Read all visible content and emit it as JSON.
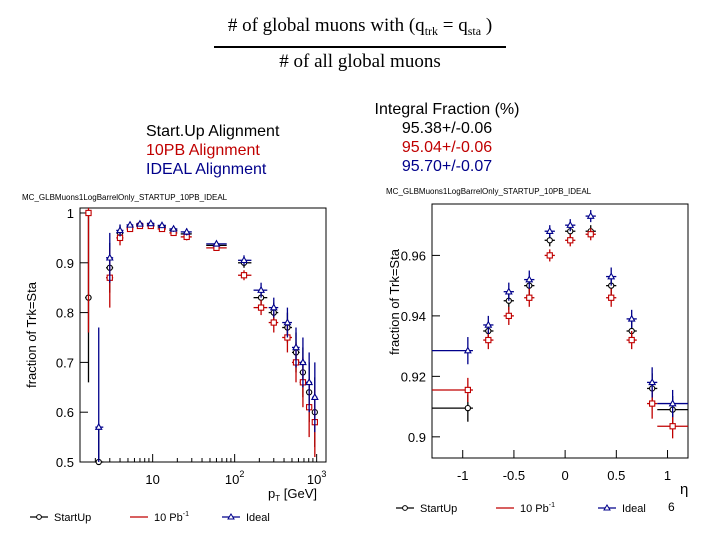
{
  "formula": {
    "numerator_prefix": "# of global muons with (q",
    "sub_trk": "trk",
    "equals": " = q",
    "sub_sta": "sta",
    "close": " )",
    "denominator": "# of all global muons"
  },
  "legend_left": {
    "startup": "Start.Up Alignment",
    "pb10": "10PB   Alignment",
    "ideal": "IDEAL   Alignment"
  },
  "legend_right": {
    "header": "Integral Fraction (%)",
    "startup": "95.38+/-0.06",
    "pb10": "95.04+/-0.06",
    "ideal": "95.70+/-0.07"
  },
  "colors": {
    "startup": "#000000",
    "pb10": "#c00000",
    "ideal": "#00008b"
  },
  "slide_number": "6",
  "chart_data": [
    {
      "type": "scatter",
      "title": "MC_GLBMuons1LogBarrelOnly_STARTUP_10PB_IDEAL",
      "xlabel": "p_T [GeV]",
      "xlabel_main": "p",
      "xlabel_sub": "T",
      "xlabel_rest": " [GeV]",
      "ylabel": "fraction of Trk=Sta",
      "xscale": "log",
      "xlim": [
        1.3,
        1300
      ],
      "ylim": [
        0.5,
        1.01
      ],
      "xticks": [
        {
          "v": 10,
          "label": "10",
          "exp": ""
        },
        {
          "v": 100,
          "label": "10",
          "exp": "2"
        },
        {
          "v": 1000,
          "label": "10",
          "exp": "3"
        }
      ],
      "yticks": [
        {
          "v": 1.0,
          "label": "1"
        },
        {
          "v": 0.9,
          "label": "0.9"
        },
        {
          "v": 0.8,
          "label": "0.8"
        },
        {
          "v": 0.7,
          "label": "0.7"
        },
        {
          "v": 0.6,
          "label": "0.6"
        },
        {
          "v": 0.5,
          "label": "0.5"
        }
      ],
      "series": [
        {
          "name": "StartUp",
          "key": "startup",
          "points": [
            {
              "x": 1.65,
              "xl": 1.5,
              "xh": 1.8,
              "y": 0.83,
              "err": 0.17
            },
            {
              "x": 2.2,
              "xl": 2.0,
              "xh": 2.5,
              "y": 0.5,
              "err": 0.07
            },
            {
              "x": 3.0,
              "xl": 2.7,
              "xh": 3.3,
              "y": 0.89,
              "err": 0.05
            },
            {
              "x": 4.0,
              "xl": 3.6,
              "xh": 4.4,
              "y": 0.96,
              "err": 0.015
            },
            {
              "x": 5.3,
              "xl": 4.8,
              "xh": 5.8,
              "y": 0.972,
              "err": 0.006
            },
            {
              "x": 7.0,
              "xl": 6.3,
              "xh": 7.7,
              "y": 0.976,
              "err": 0.004
            },
            {
              "x": 9.5,
              "xl": 8.5,
              "xh": 10.5,
              "y": 0.976,
              "err": 0.004
            },
            {
              "x": 13,
              "xl": 11.5,
              "xh": 14.5,
              "y": 0.972,
              "err": 0.005
            },
            {
              "x": 18,
              "xl": 16,
              "xh": 20,
              "y": 0.965,
              "err": 0.006
            },
            {
              "x": 26,
              "xl": 22,
              "xh": 30,
              "y": 0.958,
              "err": 0.007
            },
            {
              "x": 60,
              "xl": 45,
              "xh": 80,
              "y": 0.935,
              "err": 0.005
            },
            {
              "x": 130,
              "xl": 110,
              "xh": 160,
              "y": 0.9,
              "err": 0.01
            },
            {
              "x": 210,
              "xl": 170,
              "xh": 250,
              "y": 0.83,
              "err": 0.015
            },
            {
              "x": 300,
              "xl": 260,
              "xh": 340,
              "y": 0.8,
              "err": 0.02
            },
            {
              "x": 440,
              "xl": 380,
              "xh": 500,
              "y": 0.77,
              "err": 0.03
            },
            {
              "x": 560,
              "xl": 500,
              "xh": 620,
              "y": 0.72,
              "err": 0.04
            },
            {
              "x": 680,
              "xl": 620,
              "xh": 740,
              "y": 0.68,
              "err": 0.05
            },
            {
              "x": 810,
              "xl": 740,
              "xh": 880,
              "y": 0.64,
              "err": 0.06
            },
            {
              "x": 950,
              "xl": 880,
              "xh": 1020,
              "y": 0.6,
              "err": 0.07
            }
          ]
        },
        {
          "name": "10 Pb^-1",
          "key": "pb10",
          "points": [
            {
              "x": 1.65,
              "xl": 1.5,
              "xh": 1.8,
              "y": 1.0,
              "err": 0.24
            },
            {
              "x": 3.0,
              "xl": 2.7,
              "xh": 3.3,
              "y": 0.87,
              "err": 0.06
            },
            {
              "x": 4.0,
              "xl": 3.6,
              "xh": 4.4,
              "y": 0.95,
              "err": 0.015
            },
            {
              "x": 5.3,
              "xl": 4.8,
              "xh": 5.8,
              "y": 0.968,
              "err": 0.006
            },
            {
              "x": 7.0,
              "xl": 6.3,
              "xh": 7.7,
              "y": 0.974,
              "err": 0.004
            },
            {
              "x": 9.5,
              "xl": 8.5,
              "xh": 10.5,
              "y": 0.974,
              "err": 0.004
            },
            {
              "x": 13,
              "xl": 11.5,
              "xh": 14.5,
              "y": 0.968,
              "err": 0.005
            },
            {
              "x": 18,
              "xl": 16,
              "xh": 20,
              "y": 0.96,
              "err": 0.006
            },
            {
              "x": 26,
              "xl": 22,
              "xh": 30,
              "y": 0.952,
              "err": 0.007
            },
            {
              "x": 60,
              "xl": 45,
              "xh": 80,
              "y": 0.93,
              "err": 0.005
            },
            {
              "x": 130,
              "xl": 110,
              "xh": 160,
              "y": 0.875,
              "err": 0.01
            },
            {
              "x": 210,
              "xl": 170,
              "xh": 250,
              "y": 0.81,
              "err": 0.015
            },
            {
              "x": 300,
              "xl": 260,
              "xh": 340,
              "y": 0.78,
              "err": 0.02
            },
            {
              "x": 440,
              "xl": 380,
              "xh": 500,
              "y": 0.75,
              "err": 0.03
            },
            {
              "x": 560,
              "xl": 500,
              "xh": 620,
              "y": 0.7,
              "err": 0.04
            },
            {
              "x": 680,
              "xl": 620,
              "xh": 740,
              "y": 0.66,
              "err": 0.05
            },
            {
              "x": 810,
              "xl": 740,
              "xh": 880,
              "y": 0.61,
              "err": 0.06
            },
            {
              "x": 950,
              "xl": 880,
              "xh": 1020,
              "y": 0.58,
              "err": 0.07
            }
          ]
        },
        {
          "name": "Ideal",
          "key": "ideal",
          "points": [
            {
              "x": 2.2,
              "xl": 2.0,
              "xh": 2.5,
              "y": 0.57,
              "err": 0.2
            },
            {
              "x": 3.0,
              "xl": 2.7,
              "xh": 3.3,
              "y": 0.91,
              "err": 0.05
            },
            {
              "x": 4.0,
              "xl": 3.6,
              "xh": 4.4,
              "y": 0.965,
              "err": 0.012
            },
            {
              "x": 5.3,
              "xl": 4.8,
              "xh": 5.8,
              "y": 0.976,
              "err": 0.005
            },
            {
              "x": 7.0,
              "xl": 6.3,
              "xh": 7.7,
              "y": 0.978,
              "err": 0.004
            },
            {
              "x": 9.5,
              "xl": 8.5,
              "xh": 10.5,
              "y": 0.979,
              "err": 0.004
            },
            {
              "x": 13,
              "xl": 11.5,
              "xh": 14.5,
              "y": 0.975,
              "err": 0.005
            },
            {
              "x": 18,
              "xl": 16,
              "xh": 20,
              "y": 0.968,
              "err": 0.006
            },
            {
              "x": 26,
              "xl": 22,
              "xh": 30,
              "y": 0.962,
              "err": 0.007
            },
            {
              "x": 60,
              "xl": 45,
              "xh": 80,
              "y": 0.938,
              "err": 0.005
            },
            {
              "x": 130,
              "xl": 110,
              "xh": 160,
              "y": 0.905,
              "err": 0.01
            },
            {
              "x": 210,
              "xl": 170,
              "xh": 250,
              "y": 0.845,
              "err": 0.015
            },
            {
              "x": 300,
              "xl": 260,
              "xh": 340,
              "y": 0.81,
              "err": 0.02
            },
            {
              "x": 440,
              "xl": 380,
              "xh": 500,
              "y": 0.78,
              "err": 0.03
            },
            {
              "x": 560,
              "xl": 500,
              "xh": 620,
              "y": 0.73,
              "err": 0.04
            },
            {
              "x": 680,
              "xl": 620,
              "xh": 740,
              "y": 0.7,
              "err": 0.05
            },
            {
              "x": 810,
              "xl": 740,
              "xh": 880,
              "y": 0.66,
              "err": 0.06
            },
            {
              "x": 950,
              "xl": 880,
              "xh": 1020,
              "y": 0.63,
              "err": 0.07
            }
          ]
        }
      ],
      "legend": [
        {
          "label": "StartUp",
          "key": "startup"
        },
        {
          "label": "10 Pb",
          "sup": "-1",
          "key": "pb10"
        },
        {
          "label": "Ideal",
          "key": "ideal"
        }
      ]
    },
    {
      "type": "scatter",
      "title": "MC_GLBMuons1LogBarrelOnly_STARTUP_10PB_IDEAL",
      "xlabel": "η",
      "ylabel": "fraction of Trk=Sta",
      "xscale": "linear",
      "xlim": [
        -1.3,
        1.2
      ],
      "ylim": [
        0.893,
        0.977
      ],
      "xticks": [
        {
          "v": -1,
          "label": "-1"
        },
        {
          "v": -0.5,
          "label": "-0.5"
        },
        {
          "v": 0,
          "label": "0"
        },
        {
          "v": 0.5,
          "label": "0.5"
        },
        {
          "v": 1,
          "label": "1"
        }
      ],
      "yticks": [
        {
          "v": 0.96,
          "label": "0.96"
        },
        {
          "v": 0.94,
          "label": "0.94"
        },
        {
          "v": 0.92,
          "label": "0.92"
        },
        {
          "v": 0.9,
          "label": "0.9"
        }
      ],
      "series": [
        {
          "name": "StartUp",
          "key": "startup",
          "points": [
            {
              "x": -0.95,
              "xl": -1.3,
              "xh": -0.9,
              "y": 0.9095,
              "err": 0.0045
            },
            {
              "x": -0.75,
              "xl": -0.8,
              "xh": -0.7,
              "y": 0.935,
              "err": 0.003
            },
            {
              "x": -0.55,
              "xl": -0.6,
              "xh": -0.5,
              "y": 0.945,
              "err": 0.003
            },
            {
              "x": -0.35,
              "xl": -0.4,
              "xh": -0.3,
              "y": 0.95,
              "err": 0.003
            },
            {
              "x": -0.15,
              "xl": -0.2,
              "xh": -0.1,
              "y": 0.965,
              "err": 0.002
            },
            {
              "x": 0.05,
              "xl": 0.0,
              "xh": 0.1,
              "y": 0.968,
              "err": 0.002
            },
            {
              "x": 0.25,
              "xl": 0.2,
              "xh": 0.3,
              "y": 0.968,
              "err": 0.002
            },
            {
              "x": 0.45,
              "xl": 0.4,
              "xh": 0.5,
              "y": 0.95,
              "err": 0.003
            },
            {
              "x": 0.65,
              "xl": 0.6,
              "xh": 0.7,
              "y": 0.935,
              "err": 0.003
            },
            {
              "x": 0.85,
              "xl": 0.8,
              "xh": 0.9,
              "y": 0.916,
              "err": 0.005
            },
            {
              "x": 1.05,
              "xl": 0.9,
              "xh": 1.2,
              "y": 0.909,
              "err": 0.0045
            }
          ]
        },
        {
          "name": "10 Pb^-1",
          "key": "pb10",
          "points": [
            {
              "x": -0.95,
              "xl": -1.3,
              "xh": -0.9,
              "y": 0.9155,
              "err": 0.004
            },
            {
              "x": -0.75,
              "xl": -0.8,
              "xh": -0.7,
              "y": 0.932,
              "err": 0.003
            },
            {
              "x": -0.55,
              "xl": -0.6,
              "xh": -0.5,
              "y": 0.94,
              "err": 0.003
            },
            {
              "x": -0.35,
              "xl": -0.4,
              "xh": -0.3,
              "y": 0.946,
              "err": 0.003
            },
            {
              "x": -0.15,
              "xl": -0.2,
              "xh": -0.1,
              "y": 0.96,
              "err": 0.002
            },
            {
              "x": 0.05,
              "xl": 0.0,
              "xh": 0.1,
              "y": 0.965,
              "err": 0.002
            },
            {
              "x": 0.25,
              "xl": 0.2,
              "xh": 0.3,
              "y": 0.967,
              "err": 0.002
            },
            {
              "x": 0.45,
              "xl": 0.4,
              "xh": 0.5,
              "y": 0.946,
              "err": 0.003
            },
            {
              "x": 0.65,
              "xl": 0.6,
              "xh": 0.7,
              "y": 0.932,
              "err": 0.003
            },
            {
              "x": 0.85,
              "xl": 0.8,
              "xh": 0.9,
              "y": 0.911,
              "err": 0.005
            },
            {
              "x": 1.05,
              "xl": 0.9,
              "xh": 1.2,
              "y": 0.9035,
              "err": 0.004
            }
          ]
        },
        {
          "name": "Ideal",
          "key": "ideal",
          "points": [
            {
              "x": -0.95,
              "xl": -1.3,
              "xh": -0.9,
              "y": 0.9285,
              "err": 0.0045
            },
            {
              "x": -0.75,
              "xl": -0.8,
              "xh": -0.7,
              "y": 0.937,
              "err": 0.003
            },
            {
              "x": -0.55,
              "xl": -0.6,
              "xh": -0.5,
              "y": 0.948,
              "err": 0.003
            },
            {
              "x": -0.35,
              "xl": -0.4,
              "xh": -0.3,
              "y": 0.952,
              "err": 0.003
            },
            {
              "x": -0.15,
              "xl": -0.2,
              "xh": -0.1,
              "y": 0.968,
              "err": 0.002
            },
            {
              "x": 0.05,
              "xl": 0.0,
              "xh": 0.1,
              "y": 0.97,
              "err": 0.002
            },
            {
              "x": 0.25,
              "xl": 0.2,
              "xh": 0.3,
              "y": 0.973,
              "err": 0.002
            },
            {
              "x": 0.45,
              "xl": 0.4,
              "xh": 0.5,
              "y": 0.953,
              "err": 0.003
            },
            {
              "x": 0.65,
              "xl": 0.6,
              "xh": 0.7,
              "y": 0.939,
              "err": 0.003
            },
            {
              "x": 0.85,
              "xl": 0.8,
              "xh": 0.9,
              "y": 0.918,
              "err": 0.005
            },
            {
              "x": 1.05,
              "xl": 0.9,
              "xh": 1.2,
              "y": 0.911,
              "err": 0.0045
            }
          ]
        }
      ],
      "legend": [
        {
          "label": "StartUp",
          "key": "startup"
        },
        {
          "label": "10 Pb",
          "sup": "-1",
          "key": "pb10"
        },
        {
          "label": "Ideal",
          "key": "ideal"
        }
      ]
    }
  ]
}
